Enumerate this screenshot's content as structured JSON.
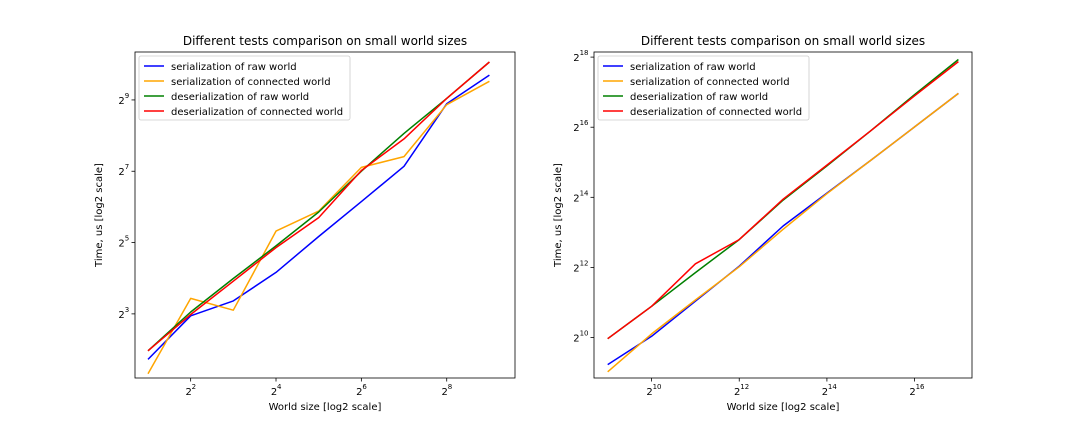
{
  "chart_data": [
    {
      "type": "line",
      "title": "Different tests comparison on small world sizes",
      "xlabel": "World size    [log2 scale]",
      "ylabel": "Time, us    [log2 scale]",
      "xscale": "log2",
      "yscale": "log2",
      "x_ticks": [
        {
          "base": "2",
          "exp": "2",
          "value": 4
        },
        {
          "base": "2",
          "exp": "4",
          "value": 16
        },
        {
          "base": "2",
          "exp": "6",
          "value": 64
        },
        {
          "base": "2",
          "exp": "8",
          "value": 256
        }
      ],
      "y_ticks": [
        {
          "base": "2",
          "exp": "3",
          "value": 8
        },
        {
          "base": "2",
          "exp": "5",
          "value": 32
        },
        {
          "base": "2",
          "exp": "7",
          "value": 128
        },
        {
          "base": "2",
          "exp": "9",
          "value": 512
        }
      ],
      "xlim": [
        1.62,
        776
      ],
      "ylim": [
        2.3,
        1300
      ],
      "grid": false,
      "legend_position": "upper-left",
      "x": [
        2,
        4,
        8,
        16,
        32,
        64,
        128,
        256,
        512
      ],
      "series": [
        {
          "name": "serialization of raw world",
          "color": "#0000ff",
          "values": [
            3.3,
            7.7,
            10.3,
            17.9,
            36,
            71,
            141,
            475,
            830
          ]
        },
        {
          "name": "serialization of connected world",
          "color": "#ffa500",
          "values": [
            2.5,
            10.8,
            8.6,
            40,
            59,
            138,
            170,
            467,
            735
          ]
        },
        {
          "name": "deserialization of raw world",
          "color": "#008000",
          "values": [
            3.9,
            8.3,
            15.9,
            30,
            58,
            128,
            267,
            527,
            1070
          ]
        },
        {
          "name": "deserialization of connected world",
          "color": "#ff0000",
          "values": [
            3.9,
            7.9,
            15.1,
            29,
            52,
            130,
            240,
            527,
            1070
          ]
        }
      ]
    },
    {
      "type": "line",
      "title": "Different tests comparison on small world sizes",
      "xlabel": "World size    [log2 scale]",
      "ylabel": "Time, us    [log2 scale]",
      "xscale": "log2",
      "yscale": "log2",
      "x_ticks": [
        {
          "base": "2",
          "exp": "10",
          "value": 1024
        },
        {
          "base": "2",
          "exp": "12",
          "value": 4096
        },
        {
          "base": "2",
          "exp": "14",
          "value": 16384
        },
        {
          "base": "2",
          "exp": "16",
          "value": 65536
        }
      ],
      "y_ticks": [
        {
          "base": "2",
          "exp": "10",
          "value": 1024
        },
        {
          "base": "2",
          "exp": "12",
          "value": 4096
        },
        {
          "base": "2",
          "exp": "14",
          "value": 16384
        },
        {
          "base": "2",
          "exp": "16",
          "value": 65536
        },
        {
          "base": "2",
          "exp": "18",
          "value": 262144
        }
      ],
      "xlim": [
        412,
        162500
      ],
      "ylim": [
        460,
        290000
      ],
      "grid": false,
      "legend_position": "upper-left",
      "x": [
        512,
        1024,
        2048,
        4096,
        8192,
        16384,
        32768,
        65536,
        131072
      ],
      "series": [
        {
          "name": "serialization of raw world",
          "color": "#0000ff",
          "values": [
            600,
            1050,
            2100,
            4200,
            9300,
            17800,
            34000,
            66000,
            128000
          ]
        },
        {
          "name": "serialization of connected world",
          "color": "#ffa500",
          "values": [
            520,
            1100,
            2150,
            4150,
            8700,
            17600,
            34000,
            66000,
            128000
          ]
        },
        {
          "name": "deserialization of raw world",
          "color": "#008000",
          "values": [
            1000,
            1900,
            3700,
            7100,
            15500,
            30500,
            61000,
            125000,
            250000
          ]
        },
        {
          "name": "deserialization of connected world",
          "color": "#ff0000",
          "values": [
            1000,
            1900,
            4400,
            7100,
            15800,
            31000,
            61000,
            122000,
            240000
          ]
        }
      ]
    }
  ]
}
